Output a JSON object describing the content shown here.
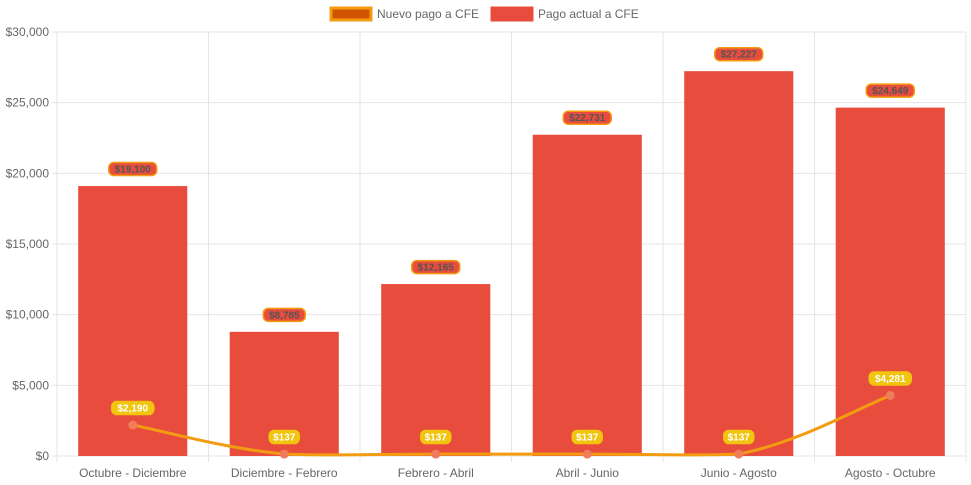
{
  "chart_data": {
    "type": "bar",
    "title": "",
    "xlabel": "",
    "ylabel": "",
    "ylim": [
      0,
      30000
    ],
    "yticks": [
      0,
      5000,
      10000,
      15000,
      20000,
      25000,
      30000
    ],
    "ytick_labels": [
      "$0",
      "$5,000",
      "$10,000",
      "$15,000",
      "$20,000",
      "$25,000",
      "$30,000"
    ],
    "grid": true,
    "legend_position": "top-center",
    "categories": [
      "Octubre - Diciembre",
      "Diciembre - Febrero",
      "Febrero - Abril",
      "Abril - Junio",
      "Junio - Agosto",
      "Agosto - Octubre"
    ],
    "series": [
      {
        "name": "Nuevo pago a CFE",
        "type": "line",
        "color": "#f39c12",
        "point_color": "#f07d5a",
        "label_bg": "#f1c40f",
        "values": [
          2190,
          137,
          137,
          137,
          137,
          4281
        ],
        "labels": [
          "$2,190",
          "$137",
          "$137",
          "$137",
          "$137",
          "$4,281"
        ]
      },
      {
        "name": "Pago actual a CFE",
        "type": "bar",
        "color": "#e74c3c",
        "label_bg": "#e74c3c",
        "label_border": "#f39c12",
        "values": [
          19100,
          8785,
          12165,
          22731,
          27227,
          24649
        ],
        "labels": [
          "$19,100",
          "$8,785",
          "$12,165",
          "$22,731",
          "$27,227",
          "$24,649"
        ]
      }
    ]
  }
}
